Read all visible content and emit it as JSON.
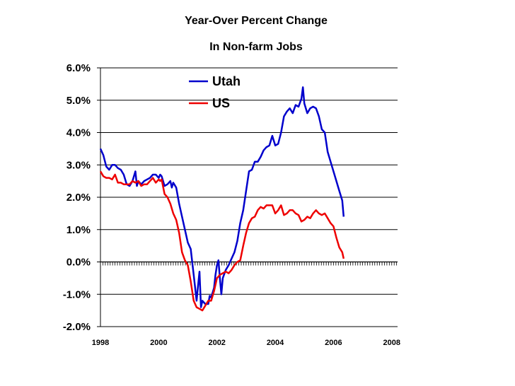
{
  "chart_data": {
    "type": "line",
    "title": "Year-Over Percent Change",
    "subtitle": "In Non-farm Jobs",
    "xlabel": "",
    "ylabel": "",
    "ylim": [
      -2.0,
      6.0
    ],
    "xlim": [
      1998.0,
      2008.2
    ],
    "grid": "horizontal",
    "legend": "top-center",
    "y_ticks": [
      {
        "value": 6.0,
        "label": "6.0%"
      },
      {
        "value": 5.0,
        "label": "5.0%"
      },
      {
        "value": 4.0,
        "label": "4.0%"
      },
      {
        "value": 3.0,
        "label": "3.0%"
      },
      {
        "value": 2.0,
        "label": "2.0%"
      },
      {
        "value": 1.0,
        "label": "1.0%"
      },
      {
        "value": 0.0,
        "label": "0.0%"
      },
      {
        "value": -1.0,
        "label": "-1.0%"
      },
      {
        "value": -2.0,
        "label": "-2.0%"
      }
    ],
    "x_ticks": [
      {
        "value": 1998.0,
        "label": "1998"
      },
      {
        "value": 2000.0,
        "label": "2000"
      },
      {
        "value": 2002.0,
        "label": "2002"
      },
      {
        "value": 2004.0,
        "label": "2004"
      },
      {
        "value": 2006.0,
        "label": "2006"
      },
      {
        "value": 2008.0,
        "label": "2008"
      }
    ],
    "series": [
      {
        "name": "Utah",
        "color": "#0000cc",
        "points": [
          [
            1998.0,
            3.5
          ],
          [
            1998.1,
            3.3
          ],
          [
            1998.2,
            2.95
          ],
          [
            1998.3,
            2.85
          ],
          [
            1998.4,
            3.0
          ],
          [
            1998.5,
            3.0
          ],
          [
            1998.6,
            2.9
          ],
          [
            1998.7,
            2.85
          ],
          [
            1998.8,
            2.7
          ],
          [
            1998.9,
            2.4
          ],
          [
            1999.0,
            2.35
          ],
          [
            1999.1,
            2.5
          ],
          [
            1999.2,
            2.8
          ],
          [
            1999.25,
            2.35
          ],
          [
            1999.3,
            2.5
          ],
          [
            1999.4,
            2.4
          ],
          [
            1999.5,
            2.5
          ],
          [
            1999.6,
            2.55
          ],
          [
            1999.7,
            2.6
          ],
          [
            1999.8,
            2.7
          ],
          [
            1999.9,
            2.7
          ],
          [
            2000.0,
            2.6
          ],
          [
            2000.05,
            2.7
          ],
          [
            2000.1,
            2.65
          ],
          [
            2000.2,
            2.35
          ],
          [
            2000.3,
            2.4
          ],
          [
            2000.4,
            2.5
          ],
          [
            2000.45,
            2.3
          ],
          [
            2000.5,
            2.45
          ],
          [
            2000.6,
            2.3
          ],
          [
            2000.7,
            1.8
          ],
          [
            2000.8,
            1.4
          ],
          [
            2000.9,
            1.0
          ],
          [
            2001.0,
            0.6
          ],
          [
            2001.1,
            0.4
          ],
          [
            2001.2,
            -0.4
          ],
          [
            2001.3,
            -1.2
          ],
          [
            2001.35,
            -0.75
          ],
          [
            2001.4,
            -0.3
          ],
          [
            2001.45,
            -1.4
          ],
          [
            2001.5,
            -1.2
          ],
          [
            2001.6,
            -1.3
          ],
          [
            2001.7,
            -1.3
          ],
          [
            2001.75,
            -1.05
          ],
          [
            2001.8,
            -1.1
          ],
          [
            2001.9,
            -0.8
          ],
          [
            2001.95,
            -0.4
          ],
          [
            2002.0,
            -0.1
          ],
          [
            2002.05,
            0.05
          ],
          [
            2002.1,
            -0.5
          ],
          [
            2002.15,
            -1.0
          ],
          [
            2002.2,
            -0.5
          ],
          [
            2002.3,
            -0.25
          ],
          [
            2002.4,
            -0.1
          ],
          [
            2002.5,
            0.1
          ],
          [
            2002.6,
            0.3
          ],
          [
            2002.7,
            0.65
          ],
          [
            2002.8,
            1.2
          ],
          [
            2002.9,
            1.6
          ],
          [
            2003.0,
            2.2
          ],
          [
            2003.1,
            2.8
          ],
          [
            2003.2,
            2.85
          ],
          [
            2003.3,
            3.1
          ],
          [
            2003.4,
            3.1
          ],
          [
            2003.5,
            3.25
          ],
          [
            2003.6,
            3.45
          ],
          [
            2003.7,
            3.55
          ],
          [
            2003.8,
            3.6
          ],
          [
            2003.9,
            3.9
          ],
          [
            2004.0,
            3.6
          ],
          [
            2004.1,
            3.65
          ],
          [
            2004.2,
            4.0
          ],
          [
            2004.3,
            4.5
          ],
          [
            2004.4,
            4.65
          ],
          [
            2004.5,
            4.75
          ],
          [
            2004.6,
            4.6
          ],
          [
            2004.7,
            4.85
          ],
          [
            2004.8,
            4.8
          ],
          [
            2004.9,
            5.05
          ],
          [
            2004.95,
            5.4
          ],
          [
            2005.0,
            4.9
          ],
          [
            2005.1,
            4.6
          ],
          [
            2005.2,
            4.75
          ],
          [
            2005.3,
            4.8
          ],
          [
            2005.4,
            4.75
          ],
          [
            2005.5,
            4.5
          ],
          [
            2005.6,
            4.1
          ],
          [
            2005.7,
            4.0
          ],
          [
            2005.8,
            3.4
          ],
          [
            2005.9,
            3.1
          ],
          [
            2006.0,
            2.8
          ],
          [
            2006.1,
            2.5
          ],
          [
            2006.2,
            2.2
          ],
          [
            2006.3,
            1.9
          ],
          [
            2006.35,
            1.4
          ]
        ]
      },
      {
        "name": "US",
        "color": "#ee0000",
        "points": [
          [
            1998.0,
            2.8
          ],
          [
            1998.1,
            2.65
          ],
          [
            1998.2,
            2.6
          ],
          [
            1998.3,
            2.6
          ],
          [
            1998.4,
            2.55
          ],
          [
            1998.5,
            2.7
          ],
          [
            1998.6,
            2.45
          ],
          [
            1998.7,
            2.45
          ],
          [
            1998.8,
            2.4
          ],
          [
            1998.9,
            2.4
          ],
          [
            1999.0,
            2.4
          ],
          [
            1999.1,
            2.5
          ],
          [
            1999.2,
            2.45
          ],
          [
            1999.3,
            2.5
          ],
          [
            1999.4,
            2.35
          ],
          [
            1999.5,
            2.4
          ],
          [
            1999.6,
            2.4
          ],
          [
            1999.7,
            2.5
          ],
          [
            1999.8,
            2.6
          ],
          [
            1999.9,
            2.45
          ],
          [
            2000.0,
            2.55
          ],
          [
            2000.05,
            2.5
          ],
          [
            2000.1,
            2.55
          ],
          [
            2000.2,
            2.1
          ],
          [
            2000.3,
            2.0
          ],
          [
            2000.4,
            1.8
          ],
          [
            2000.5,
            1.5
          ],
          [
            2000.6,
            1.3
          ],
          [
            2000.7,
            0.9
          ],
          [
            2000.8,
            0.3
          ],
          [
            2000.9,
            0.05
          ],
          [
            2001.0,
            -0.1
          ],
          [
            2001.1,
            -0.6
          ],
          [
            2001.2,
            -1.2
          ],
          [
            2001.3,
            -1.4
          ],
          [
            2001.4,
            -1.45
          ],
          [
            2001.5,
            -1.5
          ],
          [
            2001.6,
            -1.35
          ],
          [
            2001.7,
            -1.2
          ],
          [
            2001.8,
            -1.2
          ],
          [
            2001.9,
            -0.9
          ],
          [
            2002.0,
            -0.5
          ],
          [
            2002.1,
            -0.4
          ],
          [
            2002.2,
            -0.35
          ],
          [
            2002.3,
            -0.3
          ],
          [
            2002.4,
            -0.35
          ],
          [
            2002.5,
            -0.25
          ],
          [
            2002.6,
            -0.1
          ],
          [
            2002.7,
            0.0
          ],
          [
            2002.8,
            0.05
          ],
          [
            2002.9,
            0.5
          ],
          [
            2003.0,
            0.9
          ],
          [
            2003.1,
            1.2
          ],
          [
            2003.2,
            1.35
          ],
          [
            2003.3,
            1.4
          ],
          [
            2003.4,
            1.6
          ],
          [
            2003.5,
            1.7
          ],
          [
            2003.6,
            1.65
          ],
          [
            2003.7,
            1.75
          ],
          [
            2003.8,
            1.75
          ],
          [
            2003.9,
            1.75
          ],
          [
            2004.0,
            1.5
          ],
          [
            2004.1,
            1.6
          ],
          [
            2004.2,
            1.75
          ],
          [
            2004.3,
            1.45
          ],
          [
            2004.4,
            1.5
          ],
          [
            2004.5,
            1.6
          ],
          [
            2004.6,
            1.6
          ],
          [
            2004.7,
            1.5
          ],
          [
            2004.8,
            1.45
          ],
          [
            2004.9,
            1.25
          ],
          [
            2005.0,
            1.3
          ],
          [
            2005.1,
            1.4
          ],
          [
            2005.2,
            1.35
          ],
          [
            2005.3,
            1.5
          ],
          [
            2005.4,
            1.6
          ],
          [
            2005.5,
            1.5
          ],
          [
            2005.6,
            1.45
          ],
          [
            2005.7,
            1.5
          ],
          [
            2005.8,
            1.35
          ],
          [
            2005.9,
            1.2
          ],
          [
            2006.0,
            1.1
          ],
          [
            2006.1,
            0.75
          ],
          [
            2006.2,
            0.45
          ],
          [
            2006.3,
            0.3
          ],
          [
            2006.35,
            0.1
          ]
        ]
      }
    ]
  }
}
